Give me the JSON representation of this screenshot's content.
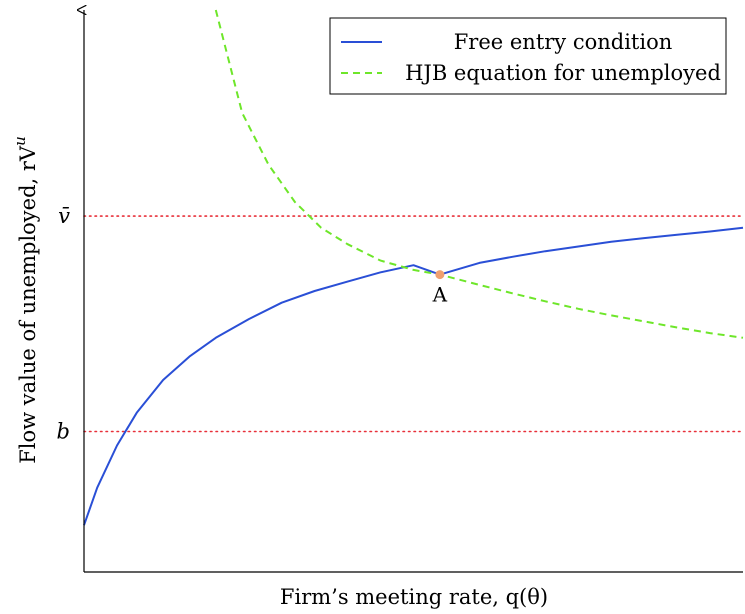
{
  "chart_data": {
    "type": "line",
    "title": "",
    "xlabel": "Firm’s meeting rate, q(θ)",
    "ylabel": "Flow value of unemployed, rV",
    "ylabel_superscript": "u",
    "xlim": [
      0,
      1
    ],
    "ylim": [
      0,
      1.2
    ],
    "x_ticks_shown": false,
    "grid": false,
    "legend_position": "top-right",
    "y_reference_lines": [
      {
        "label": "v̄",
        "value": 0.76,
        "color": "#e8313a",
        "style": "dotted"
      },
      {
        "label": "b",
        "value": 0.3,
        "color": "#e8313a",
        "style": "dotted"
      }
    ],
    "series": [
      {
        "name": "Free entry condition",
        "color": "#2a4fd6",
        "style": "solid",
        "x": [
          0,
          0.02,
          0.05,
          0.08,
          0.12,
          0.16,
          0.2,
          0.25,
          0.3,
          0.35,
          0.4,
          0.45,
          0.5,
          0.54,
          0.6,
          0.65,
          0.7,
          0.75,
          0.8,
          0.85,
          0.9,
          0.95,
          1.0
        ],
        "y": [
          0.1,
          0.18,
          0.27,
          0.34,
          0.41,
          0.46,
          0.5,
          0.54,
          0.575,
          0.6,
          0.62,
          0.64,
          0.655,
          0.635,
          0.66,
          0.673,
          0.685,
          0.695,
          0.705,
          0.713,
          0.72,
          0.727,
          0.735
        ]
      },
      {
        "name": "HJB equation for unemployed",
        "color": "#6ee62a",
        "style": "dashed",
        "x": [
          0.2,
          0.24,
          0.28,
          0.32,
          0.36,
          0.4,
          0.45,
          0.5,
          0.54,
          0.6,
          0.65,
          0.7,
          0.75,
          0.8,
          0.85,
          0.9,
          0.95,
          1.0
        ],
        "y": [
          1.2,
          0.98,
          0.87,
          0.79,
          0.735,
          0.7,
          0.665,
          0.645,
          0.635,
          0.613,
          0.595,
          0.578,
          0.562,
          0.548,
          0.535,
          0.522,
          0.51,
          0.5
        ]
      }
    ],
    "points": [
      {
        "label": "A",
        "x": 0.54,
        "y": 0.635,
        "color": "#f0a070"
      }
    ]
  }
}
